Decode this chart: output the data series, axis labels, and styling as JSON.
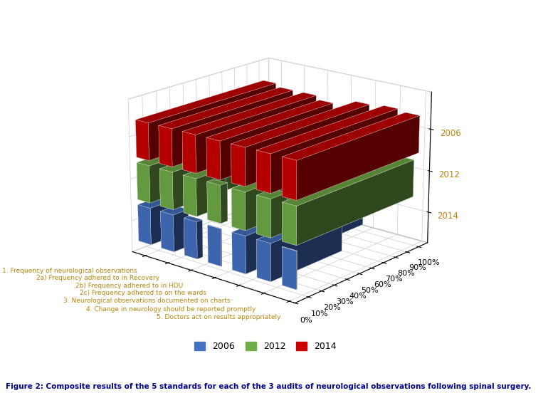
{
  "categories": [
    "1. Frequency of neurological observations",
    "2a) Frequency adhered to in Recovery",
    "2b) Frequency adhered to in HDU",
    "2c) Frequency adhered to on the wards",
    "3. Neurological observations documented on charts",
    "4. Change in neurology should be reported promptly",
    "5. Doctors act on results appropriately"
  ],
  "years": [
    "2006",
    "2012",
    "2014"
  ],
  "values_2006": [
    13,
    11,
    4,
    0,
    93,
    55,
    0
  ],
  "values_2012": [
    68,
    73,
    22,
    5,
    91,
    12,
    93
  ],
  "values_2014": [
    98,
    93,
    93,
    87,
    97,
    100,
    97
  ],
  "color_2006": "#4472C4",
  "color_2012": "#70AD47",
  "color_2014": "#CC0000",
  "ytick_vals": [
    0,
    10,
    20,
    30,
    40,
    50,
    60,
    70,
    80,
    90,
    100
  ],
  "ytick_labels": [
    "0%",
    "10%",
    "20%",
    "30%",
    "40%",
    "50%",
    "60%",
    "70%",
    "80%",
    "90%",
    "100%"
  ],
  "year_label_color": "#B8860B",
  "cat_label_color": "#B8860B",
  "figure_caption": "Figure 2: Composite results of the 5 standards for each of the 3 audits of neurological observations following spinal surgery.",
  "caption_color": "#00008B",
  "elev": 18,
  "azim": -50
}
